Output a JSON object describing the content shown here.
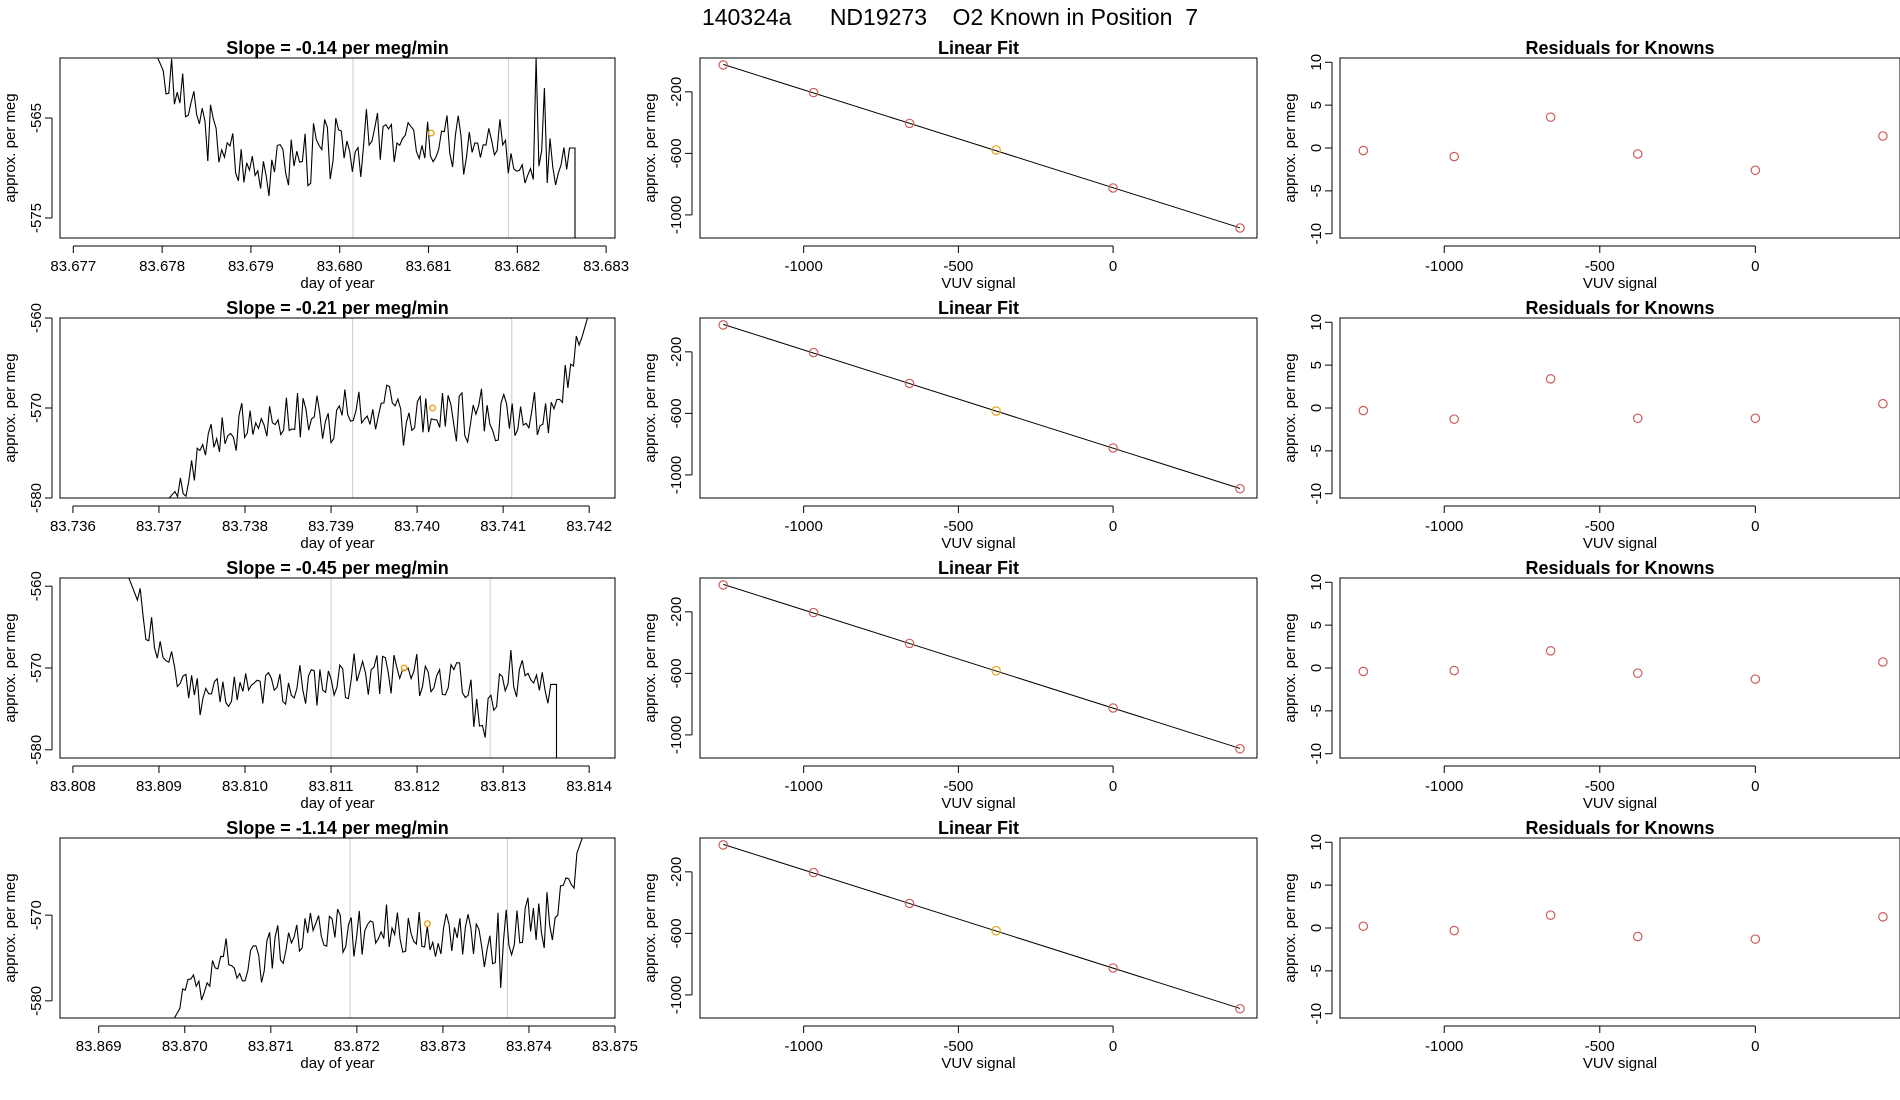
{
  "page_title": "140324a      ND19273    O2 Known in Position  7",
  "colors": {
    "trace": "#000000",
    "grid": "#d3d3d3",
    "known": "#cd5c5c",
    "highlight": "#e8a317"
  },
  "chart_data": [
    {
      "type": "line",
      "row": 0,
      "col": 0,
      "title": "Slope =  -0.14  per meg/min",
      "xlabel": "day of year",
      "ylabel": "approx. per meg",
      "xlim": [
        83.67685,
        83.6831
      ],
      "ylim": [
        -577,
        -559
      ],
      "xticks": [
        83.677,
        83.678,
        83.679,
        83.68,
        83.681,
        83.682,
        83.683
      ],
      "xtick_labels": [
        "83.677",
        "83.678",
        "83.679",
        "83.680",
        "83.681",
        "83.682",
        "83.683"
      ],
      "yticks": [
        -575,
        -565
      ],
      "ytick_labels": [
        "-575",
        "-565"
      ],
      "vlines": [
        83.68015,
        83.6819
      ],
      "trace": {
        "x_start": 83.67795,
        "x_end": 83.68265,
        "base": -567.8,
        "amp": 2.6,
        "seed": 3,
        "anchors": [
          [
            83.67795,
            -559
          ],
          [
            83.6781,
            -562
          ],
          [
            83.6785,
            -566
          ],
          [
            83.6789,
            -570
          ],
          [
            83.6795,
            -569
          ],
          [
            83.6805,
            -567
          ],
          [
            83.6815,
            -568
          ],
          [
            83.6821,
            -569
          ],
          [
            83.68255,
            -568
          ]
        ],
        "spikes": [
          [
            83.6822,
            -559
          ],
          [
            83.68232,
            -562
          ]
        ],
        "end_drop": [
          83.68265,
          -577
        ]
      },
      "marker": {
        "x": 83.68103,
        "y": -566.5
      }
    },
    {
      "type": "scatter",
      "row": 0,
      "col": 1,
      "title": "Linear Fit",
      "xlabel": "VUV signal",
      "ylabel": "approx. per meg",
      "xlim": [
        -1335,
        465
      ],
      "ylim": [
        -1150,
        20
      ],
      "xticks": [
        -1000,
        -500,
        0
      ],
      "xtick_labels": [
        "-1000",
        "-500",
        "0"
      ],
      "yticks": [
        -1000,
        -600,
        -200
      ],
      "ytick_labels": [
        "-1000",
        "-600",
        "-200"
      ],
      "points": [
        [
          -1260,
          -25
        ],
        [
          -968,
          -205
        ],
        [
          -658,
          -405
        ],
        [
          -378,
          -578
        ],
        [
          0,
          -825
        ],
        [
          410,
          -1085
        ]
      ],
      "highlight_index": 3,
      "fit_line": true
    },
    {
      "type": "scatter",
      "row": 0,
      "col": 2,
      "title": "Residuals for Knowns",
      "xlabel": "VUV signal",
      "ylabel": "approx. per meg",
      "xlim": [
        -1335,
        465
      ],
      "ylim": [
        -10.5,
        10.5
      ],
      "xticks": [
        -1000,
        -500,
        0
      ],
      "xtick_labels": [
        "-1000",
        "-500",
        "0"
      ],
      "yticks": [
        -10,
        -5,
        0,
        5,
        10
      ],
      "ytick_labels": [
        "-10",
        "-5",
        "0",
        "5",
        "10"
      ],
      "points": [
        [
          -1260,
          -0.3
        ],
        [
          -968,
          -1.0
        ],
        [
          -658,
          3.6
        ],
        [
          -378,
          -0.7
        ],
        [
          0,
          -2.6
        ],
        [
          410,
          1.4
        ]
      ]
    },
    {
      "type": "line",
      "row": 1,
      "col": 0,
      "title": "Slope =  -0.21  per meg/min",
      "xlabel": "day of year",
      "ylabel": "approx. per meg",
      "xlim": [
        83.73585,
        83.7423
      ],
      "ylim": [
        -580,
        -560
      ],
      "xticks": [
        83.736,
        83.737,
        83.738,
        83.739,
        83.74,
        83.741,
        83.742
      ],
      "xtick_labels": [
        "83.736",
        "83.737",
        "83.738",
        "83.739",
        "83.740",
        "83.741",
        "83.742"
      ],
      "yticks": [
        -580,
        -570,
        -560
      ],
      "ytick_labels": [
        "-580",
        "-570",
        "-560"
      ],
      "vlines": [
        83.73925,
        83.7411
      ],
      "trace": {
        "x_start": 83.73712,
        "x_end": 83.74198,
        "base": -571.5,
        "amp": 2.7,
        "seed": 7,
        "anchors": [
          [
            83.73712,
            -580
          ],
          [
            83.7373,
            -578
          ],
          [
            83.7376,
            -573
          ],
          [
            83.7385,
            -571
          ],
          [
            83.7395,
            -570.5
          ],
          [
            83.7405,
            -571
          ],
          [
            83.7415,
            -570
          ],
          [
            83.7418,
            -566
          ],
          [
            83.74198,
            -560
          ]
        ],
        "spikes": [],
        "end_drop": null
      },
      "marker": {
        "x": 83.74018,
        "y": -570
      }
    },
    {
      "type": "scatter",
      "row": 1,
      "col": 1,
      "title": "Linear Fit",
      "xlabel": "VUV signal",
      "ylabel": "approx. per meg",
      "xlim": [
        -1335,
        465
      ],
      "ylim": [
        -1150,
        20
      ],
      "xticks": [
        -1000,
        -500,
        0
      ],
      "xtick_labels": [
        "-1000",
        "-500",
        "0"
      ],
      "yticks": [
        -1000,
        -600,
        -200
      ],
      "ytick_labels": [
        "-1000",
        "-600",
        "-200"
      ],
      "points": [
        [
          -1260,
          -25
        ],
        [
          -968,
          -205
        ],
        [
          -658,
          -405
        ],
        [
          -378,
          -585
        ],
        [
          0,
          -825
        ],
        [
          410,
          -1090
        ]
      ],
      "highlight_index": 3,
      "fit_line": true
    },
    {
      "type": "scatter",
      "row": 1,
      "col": 2,
      "title": "Residuals for Knowns",
      "xlabel": "VUV signal",
      "ylabel": "approx. per meg",
      "xlim": [
        -1335,
        465
      ],
      "ylim": [
        -10.5,
        10.5
      ],
      "xticks": [
        -1000,
        -500,
        0
      ],
      "xtick_labels": [
        "-1000",
        "-500",
        "0"
      ],
      "yticks": [
        -10,
        -5,
        0,
        5,
        10
      ],
      "ytick_labels": [
        "-10",
        "-5",
        "0",
        "5",
        "10"
      ],
      "points": [
        [
          -1260,
          -0.3
        ],
        [
          -968,
          -1.3
        ],
        [
          -658,
          3.4
        ],
        [
          -378,
          -1.2
        ],
        [
          0,
          -1.2
        ],
        [
          410,
          0.5
        ]
      ]
    },
    {
      "type": "line",
      "row": 2,
      "col": 0,
      "title": "Slope =  -0.45  per meg/min",
      "xlabel": "day of year",
      "ylabel": "approx. per meg",
      "xlim": [
        83.80785,
        83.8143
      ],
      "ylim": [
        -581,
        -559
      ],
      "xticks": [
        83.808,
        83.809,
        83.81,
        83.811,
        83.812,
        83.813,
        83.814
      ],
      "xtick_labels": [
        "83.808",
        "83.809",
        "83.810",
        "83.811",
        "83.812",
        "83.813",
        "83.814"
      ],
      "yticks": [
        -580,
        -570,
        -560
      ],
      "ytick_labels": [
        "-580",
        "-570",
        "-560"
      ],
      "vlines": [
        83.811,
        83.81285
      ],
      "trace": {
        "x_start": 83.80865,
        "x_end": 83.81362,
        "base": -572.3,
        "amp": 2.3,
        "seed": 11,
        "anchors": [
          [
            83.80865,
            -559
          ],
          [
            83.8088,
            -563
          ],
          [
            83.8091,
            -570
          ],
          [
            83.8095,
            -573
          ],
          [
            83.8105,
            -572.5
          ],
          [
            83.8115,
            -570.5
          ],
          [
            83.8125,
            -571.5
          ],
          [
            83.8128,
            -577
          ],
          [
            83.813,
            -570
          ],
          [
            83.8134,
            -572
          ]
        ],
        "spikes": [
          [
            83.81278,
            -578.5
          ]
        ],
        "end_drop": [
          83.81362,
          -581
        ]
      },
      "marker": {
        "x": 83.81185,
        "y": -570
      }
    },
    {
      "type": "scatter",
      "row": 2,
      "col": 1,
      "title": "Linear Fit",
      "xlabel": "VUV signal",
      "ylabel": "approx. per meg",
      "xlim": [
        -1335,
        465
      ],
      "ylim": [
        -1150,
        20
      ],
      "xticks": [
        -1000,
        -500,
        0
      ],
      "xtick_labels": [
        "-1000",
        "-500",
        "0"
      ],
      "yticks": [
        -1000,
        -600,
        -200
      ],
      "ytick_labels": [
        "-1000",
        "-600",
        "-200"
      ],
      "points": [
        [
          -1260,
          -25
        ],
        [
          -968,
          -205
        ],
        [
          -658,
          -405
        ],
        [
          -378,
          -583
        ],
        [
          0,
          -825
        ],
        [
          410,
          -1090
        ]
      ],
      "highlight_index": 3,
      "fit_line": true
    },
    {
      "type": "scatter",
      "row": 2,
      "col": 2,
      "title": "Residuals for Knowns",
      "xlabel": "VUV signal",
      "ylabel": "approx. per meg",
      "xlim": [
        -1335,
        465
      ],
      "ylim": [
        -10.5,
        10.5
      ],
      "xticks": [
        -1000,
        -500,
        0
      ],
      "xtick_labels": [
        "-1000",
        "-500",
        "0"
      ],
      "yticks": [
        -10,
        -5,
        0,
        5,
        10
      ],
      "ytick_labels": [
        "-10",
        "-5",
        "0",
        "5",
        "10"
      ],
      "points": [
        [
          -1260,
          -0.4
        ],
        [
          -968,
          -0.3
        ],
        [
          -658,
          2.0
        ],
        [
          -378,
          -0.6
        ],
        [
          0,
          -1.3
        ],
        [
          410,
          0.7
        ]
      ]
    },
    {
      "type": "line",
      "row": 3,
      "col": 0,
      "title": "Slope =  -1.14  per meg/min",
      "xlabel": "day of year",
      "ylabel": "approx. per meg",
      "xlim": [
        83.86855,
        83.875
      ],
      "ylim": [
        -582,
        -561
      ],
      "xticks": [
        83.869,
        83.87,
        83.871,
        83.872,
        83.873,
        83.874,
        83.875
      ],
      "xtick_labels": [
        "83.869",
        "83.870",
        "83.871",
        "83.872",
        "83.873",
        "83.874",
        "83.875"
      ],
      "yticks": [
        -580,
        -570
      ],
      "ytick_labels": [
        "-580",
        "-570"
      ],
      "vlines": [
        83.87192,
        83.87375
      ],
      "trace": {
        "x_start": 83.86988,
        "x_end": 83.87462,
        "base": -572.3,
        "amp": 2.7,
        "seed": 19,
        "anchors": [
          [
            83.86988,
            -582
          ],
          [
            83.8701,
            -578
          ],
          [
            83.8705,
            -576
          ],
          [
            83.8715,
            -572
          ],
          [
            83.8725,
            -572
          ],
          [
            83.8735,
            -573
          ],
          [
            83.8743,
            -570
          ],
          [
            83.87462,
            -561
          ]
        ],
        "spikes": [
          [
            83.87368,
            -578.5
          ]
        ],
        "end_drop": null
      },
      "marker": {
        "x": 83.87282,
        "y": -571
      }
    },
    {
      "type": "scatter",
      "row": 3,
      "col": 1,
      "title": "Linear Fit",
      "xlabel": "VUV signal",
      "ylabel": "approx. per meg",
      "xlim": [
        -1335,
        465
      ],
      "ylim": [
        -1150,
        20
      ],
      "xticks": [
        -1000,
        -500,
        0
      ],
      "xtick_labels": [
        "-1000",
        "-500",
        "0"
      ],
      "yticks": [
        -1000,
        -600,
        -200
      ],
      "ytick_labels": [
        "-1000",
        "-600",
        "-200"
      ],
      "points": [
        [
          -1260,
          -25
        ],
        [
          -968,
          -205
        ],
        [
          -658,
          -405
        ],
        [
          -378,
          -583
        ],
        [
          0,
          -825
        ],
        [
          410,
          -1090
        ]
      ],
      "highlight_index": 3,
      "fit_line": true
    },
    {
      "type": "scatter",
      "row": 3,
      "col": 2,
      "title": "Residuals for Knowns",
      "xlabel": "VUV signal",
      "ylabel": "approx. per meg",
      "xlim": [
        -1335,
        465
      ],
      "ylim": [
        -10.5,
        10.5
      ],
      "xticks": [
        -1000,
        -500,
        0
      ],
      "xtick_labels": [
        "-1000",
        "-500",
        "0"
      ],
      "yticks": [
        -10,
        -5,
        0,
        5,
        10
      ],
      "ytick_labels": [
        "-10",
        "-5",
        "0",
        "5",
        "10"
      ],
      "points": [
        [
          -1260,
          0.2
        ],
        [
          -968,
          -0.3
        ],
        [
          -658,
          1.5
        ],
        [
          -378,
          -1.0
        ],
        [
          0,
          -1.3
        ],
        [
          410,
          1.3
        ]
      ]
    }
  ]
}
